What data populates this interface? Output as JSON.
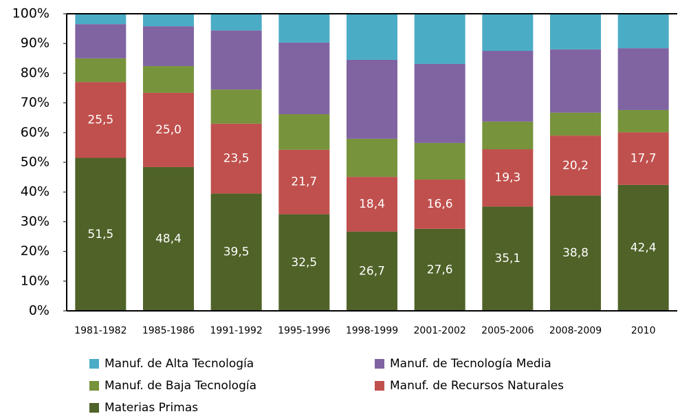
{
  "chart_data": {
    "type": "stacked-bar",
    "categories": [
      "1981-1982",
      "1985-1986",
      "1991-1992",
      "1995-1996",
      "1998-1999",
      "2001-2002",
      "2005-2006",
      "2008-2009",
      "2010"
    ],
    "series": [
      {
        "name": "Manuf. de Alta Tecnología",
        "color": "#4bacc6",
        "values": [
          3.5,
          4.2,
          5.6,
          9.7,
          15.5,
          16.9,
          12.5,
          12.0,
          11.6
        ]
      },
      {
        "name": "Manuf. de Tecnología Media",
        "color": "#8064a2",
        "values": [
          11.5,
          13.4,
          19.9,
          24.1,
          26.6,
          26.6,
          23.8,
          21.3,
          20.8
        ]
      },
      {
        "name": "Manuf. de Baja Tecnología",
        "color": "#77933c",
        "values": [
          8.0,
          9.0,
          11.5,
          12.0,
          12.8,
          12.3,
          9.3,
          7.7,
          7.5
        ]
      },
      {
        "name": "Manuf. de Recursos Naturales",
        "color": "#c0504d",
        "values": [
          25.5,
          25.0,
          23.5,
          21.7,
          18.4,
          16.6,
          19.3,
          20.2,
          17.7
        ],
        "value_labels": [
          "25,5",
          "25,0",
          "23,5",
          "21,7",
          "18,4",
          "16,6",
          "19,3",
          "20,2",
          "17,7"
        ]
      },
      {
        "name": "Materias Primas",
        "color": "#4f6228",
        "values": [
          51.5,
          48.4,
          39.5,
          32.5,
          26.7,
          27.6,
          35.1,
          38.8,
          42.4
        ],
        "value_labels": [
          "51,5",
          "48,4",
          "39,5",
          "32,5",
          "26,7",
          "27,6",
          "35,1",
          "38,8",
          "42,4"
        ]
      }
    ],
    "ylim": [
      0,
      100
    ],
    "yticks": [
      {
        "value": 0,
        "label": "0%"
      },
      {
        "value": 10,
        "label": "10%"
      },
      {
        "value": 20,
        "label": "20%"
      },
      {
        "value": 30,
        "label": "30%"
      },
      {
        "value": 40,
        "label": "40%"
      },
      {
        "value": 50,
        "label": "50%"
      },
      {
        "value": 60,
        "label": "60%"
      },
      {
        "value": 70,
        "label": "70%"
      },
      {
        "value": 80,
        "label": "80%"
      },
      {
        "value": 90,
        "label": "90%"
      },
      {
        "value": 100,
        "label": "100%"
      }
    ]
  }
}
